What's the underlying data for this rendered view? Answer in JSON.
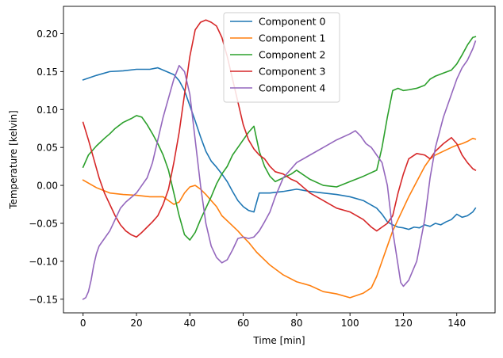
{
  "chart_data": {
    "type": "line",
    "title": "",
    "xlabel": "Time [min]",
    "ylabel": "Temperature [kelvin]",
    "xlim": [
      -7.35,
      154.35
    ],
    "ylim": [
      -0.168,
      0.236
    ],
    "xticks": [
      0,
      20,
      40,
      60,
      80,
      100,
      120,
      140
    ],
    "xtick_labels": [
      "0",
      "20",
      "40",
      "60",
      "80",
      "100",
      "120",
      "140"
    ],
    "yticks": [
      -0.15,
      -0.1,
      -0.05,
      0.0,
      0.05,
      0.1,
      0.15,
      0.2
    ],
    "ytick_labels": [
      "−0.15",
      "−0.10",
      "−0.05",
      "0.00",
      "0.05",
      "0.10",
      "0.15",
      "0.20"
    ],
    "grid": false,
    "legend_position": "top-center",
    "series": [
      {
        "name": "Component 0",
        "color": "#1f77b4",
        "x": [
          0,
          5,
          10,
          15,
          20,
          25,
          28,
          30,
          32,
          34,
          36,
          38,
          40,
          42,
          44,
          46,
          48,
          50,
          52,
          54,
          56,
          58,
          60,
          62,
          64,
          66,
          70,
          75,
          80,
          85,
          90,
          95,
          100,
          105,
          110,
          112,
          114,
          116,
          118,
          120,
          122,
          124,
          126,
          128,
          130,
          132,
          134,
          136,
          138,
          140,
          142,
          144,
          146,
          147
        ],
        "y": [
          0.139,
          0.145,
          0.15,
          0.151,
          0.153,
          0.153,
          0.155,
          0.152,
          0.149,
          0.146,
          0.138,
          0.125,
          0.105,
          0.085,
          0.064,
          0.045,
          0.032,
          0.024,
          0.015,
          0.005,
          -0.008,
          -0.02,
          -0.028,
          -0.033,
          -0.035,
          -0.01,
          -0.01,
          -0.008,
          -0.005,
          -0.008,
          -0.01,
          -0.012,
          -0.015,
          -0.02,
          -0.03,
          -0.038,
          -0.048,
          -0.052,
          -0.055,
          -0.056,
          -0.058,
          -0.055,
          -0.056,
          -0.052,
          -0.054,
          -0.05,
          -0.052,
          -0.048,
          -0.045,
          -0.038,
          -0.042,
          -0.04,
          -0.035,
          -0.03
        ]
      },
      {
        "name": "Component 1",
        "color": "#ff7f0e",
        "x": [
          0,
          5,
          10,
          15,
          20,
          25,
          30,
          32,
          34,
          36,
          38,
          40,
          42,
          44,
          46,
          48,
          50,
          52,
          55,
          58,
          60,
          62,
          65,
          70,
          75,
          80,
          85,
          90,
          95,
          100,
          105,
          108,
          110,
          112,
          114,
          116,
          118,
          120,
          122,
          125,
          128,
          130,
          132,
          135,
          138,
          140,
          142,
          144,
          146,
          147
        ],
        "y": [
          0.007,
          -0.003,
          -0.01,
          -0.012,
          -0.013,
          -0.015,
          -0.015,
          -0.02,
          -0.025,
          -0.022,
          -0.01,
          -0.002,
          0.0,
          -0.005,
          -0.012,
          -0.02,
          -0.028,
          -0.04,
          -0.05,
          -0.06,
          -0.068,
          -0.075,
          -0.088,
          -0.105,
          -0.118,
          -0.127,
          -0.132,
          -0.14,
          -0.143,
          -0.148,
          -0.142,
          -0.135,
          -0.12,
          -0.1,
          -0.08,
          -0.06,
          -0.045,
          -0.03,
          -0.015,
          0.005,
          0.025,
          0.035,
          0.04,
          0.045,
          0.05,
          0.053,
          0.055,
          0.058,
          0.062,
          0.061
        ]
      },
      {
        "name": "Component 2",
        "color": "#2ca02c",
        "x": [
          0,
          2,
          5,
          8,
          10,
          12,
          15,
          18,
          20,
          22,
          24,
          26,
          28,
          30,
          32,
          34,
          36,
          38,
          40,
          42,
          44,
          46,
          48,
          50,
          52,
          54,
          56,
          58,
          60,
          62,
          64,
          66,
          68,
          70,
          72,
          75,
          78,
          80,
          85,
          90,
          95,
          100,
          105,
          110,
          112,
          114,
          116,
          118,
          120,
          122,
          125,
          128,
          130,
          132,
          135,
          138,
          140,
          142,
          144,
          146,
          147
        ],
        "y": [
          0.024,
          0.04,
          0.052,
          0.062,
          0.068,
          0.075,
          0.083,
          0.088,
          0.092,
          0.09,
          0.08,
          0.068,
          0.055,
          0.04,
          0.02,
          -0.01,
          -0.04,
          -0.065,
          -0.072,
          -0.062,
          -0.045,
          -0.03,
          -0.015,
          0.002,
          0.015,
          0.025,
          0.04,
          0.05,
          0.06,
          0.07,
          0.078,
          0.045,
          0.025,
          0.012,
          0.005,
          0.01,
          0.015,
          0.02,
          0.008,
          0.0,
          -0.002,
          0.005,
          0.012,
          0.02,
          0.05,
          0.09,
          0.125,
          0.128,
          0.125,
          0.126,
          0.128,
          0.132,
          0.14,
          0.144,
          0.148,
          0.152,
          0.16,
          0.172,
          0.185,
          0.195,
          0.196
        ]
      },
      {
        "name": "Component 3",
        "color": "#d62728",
        "x": [
          0,
          2,
          4,
          6,
          8,
          10,
          12,
          14,
          16,
          18,
          20,
          22,
          24,
          26,
          28,
          30,
          32,
          34,
          36,
          38,
          40,
          42,
          44,
          46,
          48,
          50,
          52,
          54,
          56,
          58,
          60,
          62,
          64,
          66,
          68,
          70,
          72,
          75,
          78,
          80,
          85,
          90,
          95,
          100,
          105,
          108,
          110,
          112,
          114,
          116,
          118,
          120,
          122,
          125,
          128,
          130,
          132,
          135,
          138,
          140,
          142,
          144,
          146,
          147
        ],
        "y": [
          0.083,
          0.06,
          0.035,
          0.01,
          -0.01,
          -0.025,
          -0.04,
          -0.052,
          -0.06,
          -0.065,
          -0.068,
          -0.062,
          -0.055,
          -0.048,
          -0.04,
          -0.025,
          -0.005,
          0.03,
          0.07,
          0.12,
          0.17,
          0.205,
          0.215,
          0.218,
          0.215,
          0.21,
          0.195,
          0.17,
          0.14,
          0.11,
          0.08,
          0.06,
          0.048,
          0.04,
          0.035,
          0.025,
          0.018,
          0.015,
          0.008,
          0.005,
          -0.01,
          -0.02,
          -0.03,
          -0.035,
          -0.045,
          -0.055,
          -0.06,
          -0.055,
          -0.05,
          -0.04,
          -0.01,
          0.015,
          0.035,
          0.042,
          0.04,
          0.035,
          0.045,
          0.055,
          0.063,
          0.055,
          0.04,
          0.03,
          0.022,
          0.02
        ]
      },
      {
        "name": "Component 4",
        "color": "#9467bd",
        "x": [
          0,
          1,
          2,
          3,
          4,
          5,
          6,
          8,
          10,
          12,
          14,
          16,
          18,
          20,
          22,
          24,
          26,
          28,
          30,
          32,
          34,
          36,
          38,
          40,
          42,
          44,
          46,
          48,
          50,
          52,
          54,
          56,
          58,
          60,
          62,
          64,
          66,
          68,
          70,
          72,
          75,
          78,
          80,
          85,
          90,
          95,
          100,
          102,
          104,
          106,
          108,
          110,
          112,
          114,
          116,
          118,
          119,
          120,
          122,
          125,
          128,
          130,
          132,
          135,
          138,
          140,
          142,
          144,
          146,
          147
        ],
        "y": [
          -0.15,
          -0.148,
          -0.14,
          -0.125,
          -0.105,
          -0.09,
          -0.08,
          -0.07,
          -0.06,
          -0.045,
          -0.03,
          -0.022,
          -0.016,
          -0.01,
          0.0,
          0.01,
          0.03,
          0.06,
          0.09,
          0.115,
          0.14,
          0.158,
          0.15,
          0.12,
          0.06,
          0.0,
          -0.05,
          -0.08,
          -0.095,
          -0.102,
          -0.098,
          -0.085,
          -0.07,
          -0.068,
          -0.07,
          -0.068,
          -0.06,
          -0.048,
          -0.035,
          -0.015,
          0.01,
          0.022,
          0.03,
          0.04,
          0.05,
          0.06,
          0.068,
          0.072,
          0.065,
          0.055,
          0.05,
          0.04,
          0.03,
          0.0,
          -0.06,
          -0.105,
          -0.128,
          -0.133,
          -0.125,
          -0.1,
          -0.045,
          0.01,
          0.05,
          0.09,
          0.12,
          0.14,
          0.155,
          0.165,
          0.18,
          0.19
        ]
      }
    ]
  }
}
